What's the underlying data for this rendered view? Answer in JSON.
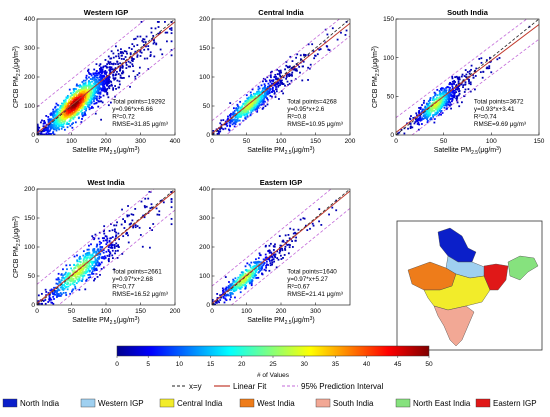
{
  "colors": {
    "north_india": "#0b1fc9",
    "western_igp": "#9fd0f0",
    "central_india": "#f2ec2a",
    "west_india": "#ee7c1a",
    "south_india": "#f2a895",
    "north_east_india": "#86e27e",
    "eastern_igp": "#e01818",
    "fit_line": "#c0392b",
    "pi_line": "#c36ad9",
    "one_to_one": "#222222"
  },
  "chart_data": [
    {
      "type": "scatter",
      "name": "western-igp",
      "title": "Western IGP",
      "xlabel": "Satellite PM",
      "ylabel": "CPCB PM",
      "label_sub": "2.5",
      "label_unit": "(μg/m",
      "xlim": [
        0,
        400
      ],
      "ylim": [
        0,
        400
      ],
      "xticks": [
        0,
        100,
        200,
        300,
        400
      ],
      "yticks": [
        0,
        100,
        200,
        300,
        400
      ],
      "fit": {
        "slope": 0.96,
        "intercept": 6.66
      },
      "pi_half_width": 90,
      "stats": [
        "Total points=19292",
        "y=0.96*x+6.66",
        "R²=0.72",
        "RMSE=31.85 μg/m³"
      ],
      "cloud": {
        "count": 1600,
        "center": 110,
        "spread": 60,
        "ratio": 0.96,
        "noise": 32,
        "max": 390
      }
    },
    {
      "type": "scatter",
      "name": "central-india",
      "title": "Central India",
      "xlabel": "Satellite PM",
      "ylabel": "",
      "label_sub": "2.5",
      "label_unit": "(μg/m",
      "xlim": [
        0,
        200
      ],
      "ylim": [
        0,
        200
      ],
      "xticks": [
        0,
        50,
        100,
        150,
        200
      ],
      "yticks": [
        0,
        50,
        100,
        150,
        200
      ],
      "fit": {
        "slope": 0.95,
        "intercept": 2.6
      },
      "pi_half_width": 22,
      "stats": [
        "Total points=4268",
        "y=0.95*x+2.6",
        "R²=0.8",
        "RMSE=10.95 μg/m³"
      ],
      "cloud": {
        "count": 700,
        "center": 55,
        "spread": 26,
        "ratio": 0.95,
        "noise": 11,
        "max": 195
      }
    },
    {
      "type": "scatter",
      "name": "south-india",
      "title": "South India",
      "xlabel": "Satellite PM",
      "ylabel": "CPCB PM",
      "label_sub": "2.5",
      "label_unit": "(μg/m",
      "xlim": [
        0,
        150
      ],
      "ylim": [
        0,
        150
      ],
      "xticks": [
        0,
        50,
        100,
        150
      ],
      "yticks": [
        0,
        50,
        100,
        150
      ],
      "fit": {
        "slope": 0.93,
        "intercept": 3.41
      },
      "pi_half_width": 19,
      "stats": [
        "Total points=3672",
        "y=0.93*x+3.41",
        "R²=0.74",
        "RMSE=9.69 μg/m³"
      ],
      "cloud": {
        "count": 600,
        "center": 42,
        "spread": 14,
        "ratio": 0.93,
        "noise": 9,
        "max": 140
      }
    },
    {
      "type": "scatter",
      "name": "west-india",
      "title": "West India",
      "xlabel": "Satellite PM",
      "ylabel": "CPCB PM",
      "label_sub": "2.5",
      "label_unit": "(μg/m",
      "xlim": [
        0,
        200
      ],
      "ylim": [
        0,
        200
      ],
      "xticks": [
        0,
        50,
        100,
        150,
        200
      ],
      "yticks": [
        0,
        50,
        100,
        150,
        200
      ],
      "fit": {
        "slope": 0.97,
        "intercept": 2.68
      },
      "pi_half_width": 33,
      "stats": [
        "Total points=2661",
        "y=0.97*x+2.68",
        "R²=0.77",
        "RMSE=16.52 μg/m³"
      ],
      "cloud": {
        "count": 650,
        "center": 60,
        "spread": 32,
        "ratio": 0.97,
        "noise": 16,
        "max": 195
      }
    },
    {
      "type": "scatter",
      "name": "eastern-igp",
      "title": "Eastern IGP",
      "xlabel": "Satellite PM",
      "ylabel": "",
      "label_sub": "2.5",
      "label_unit": "(μg/m",
      "xlim": [
        0,
        400
      ],
      "ylim": [
        0,
        400
      ],
      "xticks": [
        0,
        100,
        200,
        300
      ],
      "yticks": [
        0,
        100,
        200,
        300,
        400
      ],
      "fit": {
        "slope": 0.97,
        "intercept": 5.27
      },
      "pi_half_width": 60,
      "stats": [
        "Total points=1640",
        "y=0.97*x+5.27",
        "R²=0.67",
        "RMSE=21.41 μg/m³"
      ],
      "cloud": {
        "count": 500,
        "center": 95,
        "spread": 50,
        "ratio": 0.97,
        "noise": 22,
        "max": 360
      }
    }
  ],
  "colorbar": {
    "label": "# of Values",
    "ticks": [
      0,
      5,
      10,
      15,
      20,
      25,
      30,
      35,
      40,
      45,
      50
    ],
    "range": [
      0,
      50
    ]
  },
  "line_legend": {
    "one_to_one": "x=y",
    "linear_fit": "Linear Fit",
    "prediction": "95% Prediction Interval"
  },
  "region_legend": [
    {
      "label": "North India",
      "key": "north_india"
    },
    {
      "label": "Western IGP",
      "key": "western_igp"
    },
    {
      "label": "Central India",
      "key": "central_india"
    },
    {
      "label": "West India",
      "key": "west_india"
    },
    {
      "label": "South India",
      "key": "south_india"
    },
    {
      "label": "North East India",
      "key": "north_east_india"
    },
    {
      "label": "Eastern IGP",
      "key": "eastern_igp"
    }
  ]
}
